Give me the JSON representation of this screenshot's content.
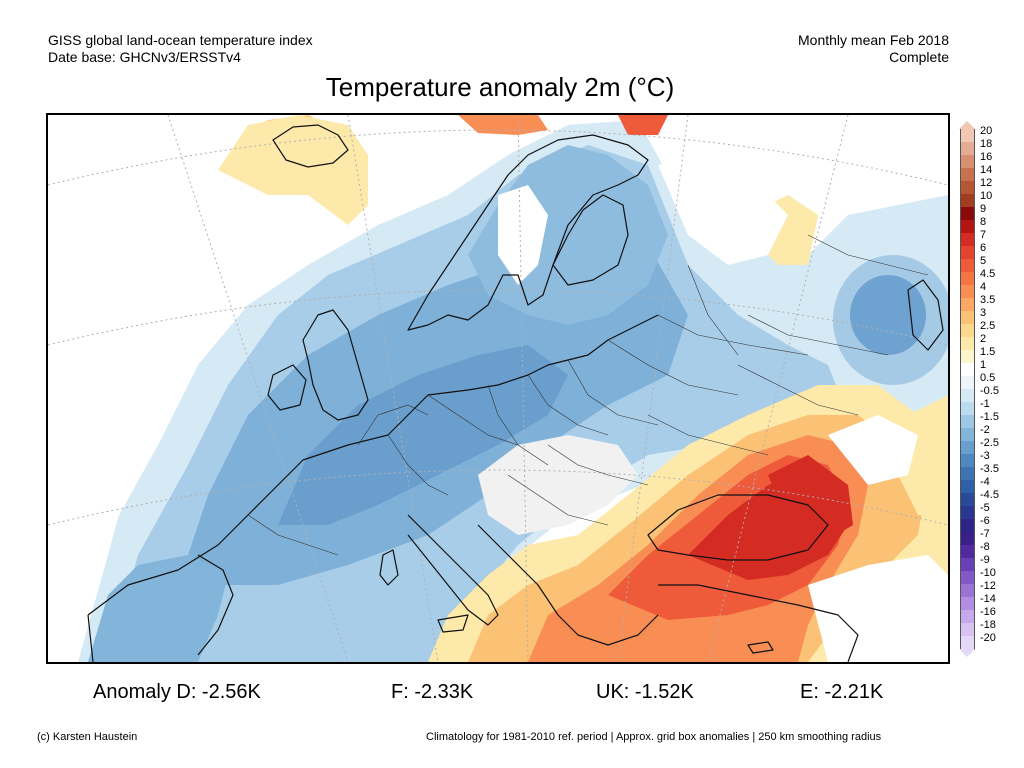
{
  "header": {
    "line1_left": "GISS global land-ocean temperature index",
    "line2_left": "Date base: GHCNv3/ERSSTv4",
    "line1_right": "Monthly mean Feb 2018",
    "line2_right": "Complete"
  },
  "title": "Temperature anomaly 2m (°C)",
  "legend": {
    "labels": [
      "20",
      "18",
      "16",
      "14",
      "12",
      "10",
      "9",
      "8",
      "7",
      "6",
      "5",
      "4.5",
      "4",
      "3.5",
      "3",
      "2.5",
      "2",
      "1.5",
      "1",
      "0.5",
      "-0.5",
      "-1",
      "-1.5",
      "-2",
      "-2.5",
      "-3",
      "-3.5",
      "-4",
      "-4.5",
      "-5",
      "-6",
      "-7",
      "-8",
      "-9",
      "-10",
      "-12",
      "-14",
      "-16",
      "-18",
      "-20"
    ],
    "colors": [
      "#f2c8b4",
      "#e6ab94",
      "#d98f72",
      "#c9714f",
      "#b65634",
      "#a23d20",
      "#8a0a0a",
      "#b41414",
      "#d42b22",
      "#e54430",
      "#ef5b3a",
      "#f57345",
      "#f98e54",
      "#fba862",
      "#fbc275",
      "#fcd98e",
      "#fdeaab",
      "#fdf5cb",
      "#ffffff",
      "#edf5fb",
      "#d6eaf6",
      "#bcdbef",
      "#9fc8e6",
      "#83b4da",
      "#689fcd",
      "#4f88c0",
      "#3d73b3",
      "#2f5fa6",
      "#2a4a99",
      "#2b3690",
      "#2d2488",
      "#3a1e8a",
      "#512aa0",
      "#6a40b8",
      "#8458c8",
      "#9c72d6",
      "#b38de2",
      "#c6a8ec",
      "#d8c2f3",
      "#e6d8f8"
    ]
  },
  "anomalies": {
    "D": "Anomaly D: -2.56K",
    "F": "F: -2.33K",
    "UK": "UK: -1.52K",
    "E": "E: -2.21K"
  },
  "footer": {
    "left": "(c) Karsten Haustein",
    "right": "Climatology for 1981-2010 ref. period | Approx. grid box anomalies | 250 km smoothing radius"
  }
}
